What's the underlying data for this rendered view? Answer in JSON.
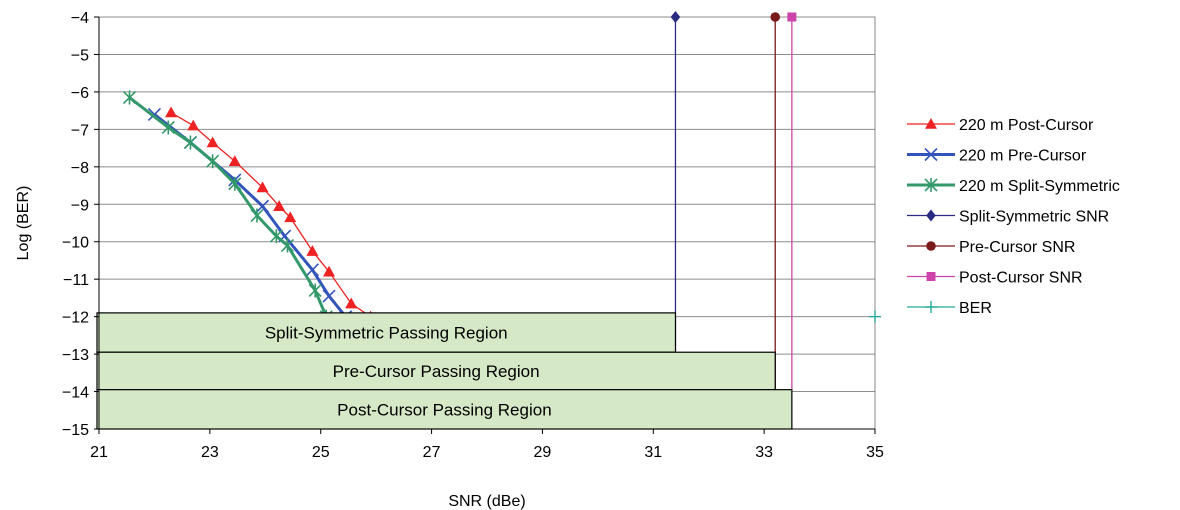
{
  "chart_data": {
    "type": "line",
    "title": "",
    "xlabel": "SNR (dBe)",
    "ylabel": "Log (BER)",
    "xlim": [
      21,
      35
    ],
    "ylim": [
      -15,
      -4
    ],
    "x_ticks": [
      "21",
      "23",
      "25",
      "27",
      "29",
      "31",
      "33",
      "35"
    ],
    "y_ticks": [
      "-4",
      "-5",
      "-6",
      "-7",
      "-8",
      "-9",
      "-10",
      "-11",
      "-12",
      "-13",
      "-14",
      "-15"
    ],
    "grid": "horizontal",
    "legend_position": "right",
    "series": [
      {
        "name": "220 m Post-Cursor",
        "color": "#ee2222",
        "marker": "triangle",
        "line_width": 1.3,
        "x": [
          22.3,
          22.7,
          23.05,
          23.45,
          23.95,
          24.25,
          24.45,
          24.85,
          25.15,
          25.55,
          25.9
        ],
        "y": [
          -6.55,
          -6.9,
          -7.35,
          -7.85,
          -8.55,
          -9.05,
          -9.35,
          -10.25,
          -10.8,
          -11.65,
          -12.0
        ]
      },
      {
        "name": "220 m Pre-Cursor",
        "color": "#3355bb",
        "marker": "x",
        "line_width": 3,
        "x": [
          22.0,
          22.65,
          23.45,
          23.95,
          24.35,
          24.85,
          25.15,
          25.45
        ],
        "y": [
          -6.6,
          -7.35,
          -8.35,
          -9.05,
          -9.85,
          -10.75,
          -11.45,
          -12.0
        ]
      },
      {
        "name": "220 m Split-Symmetric",
        "color": "#33996a",
        "marker": "asterisk",
        "line_width": 3,
        "x": [
          21.55,
          22.25,
          22.65,
          23.05,
          23.45,
          23.85,
          24.2,
          24.4,
          24.9,
          25.1
        ],
        "y": [
          -6.15,
          -6.95,
          -7.35,
          -7.85,
          -8.45,
          -9.3,
          -9.85,
          -10.1,
          -11.3,
          -12.0
        ]
      },
      {
        "name": "Split-Symmetric SNR",
        "color": "#2a2a80",
        "marker": "diamond",
        "line_width": 1.3,
        "x": [
          31.4,
          31.4
        ],
        "y": [
          -4,
          -15
        ]
      },
      {
        "name": "Pre-Cursor SNR",
        "color": "#7a1a1a",
        "marker": "circle",
        "line_width": 1.3,
        "x": [
          33.2,
          33.2
        ],
        "y": [
          -4,
          -15
        ]
      },
      {
        "name": "Post-Cursor SNR",
        "color": "#cc44aa",
        "marker": "square",
        "line_width": 1.3,
        "x": [
          33.5,
          33.5
        ],
        "y": [
          -4,
          -15
        ]
      },
      {
        "name": "BER",
        "color": "#22aa99",
        "marker": "plus",
        "line_width": 1.3,
        "x": [
          35
        ],
        "y": [
          -12
        ]
      }
    ],
    "regions": [
      {
        "label": "Split-Symmetric Passing Region",
        "x": [
          21,
          31.4
        ],
        "y": [
          -11.9,
          -12.95
        ],
        "fill": "#d6e9c6"
      },
      {
        "label": "Pre-Cursor Passing Region",
        "x": [
          21,
          33.2
        ],
        "y": [
          -12.95,
          -13.95
        ],
        "fill": "#d6e9c6"
      },
      {
        "label": "Post-Cursor Passing Region",
        "x": [
          21,
          33.5
        ],
        "y": [
          -13.95,
          -15
        ],
        "fill": "#d6e9c6"
      }
    ]
  }
}
